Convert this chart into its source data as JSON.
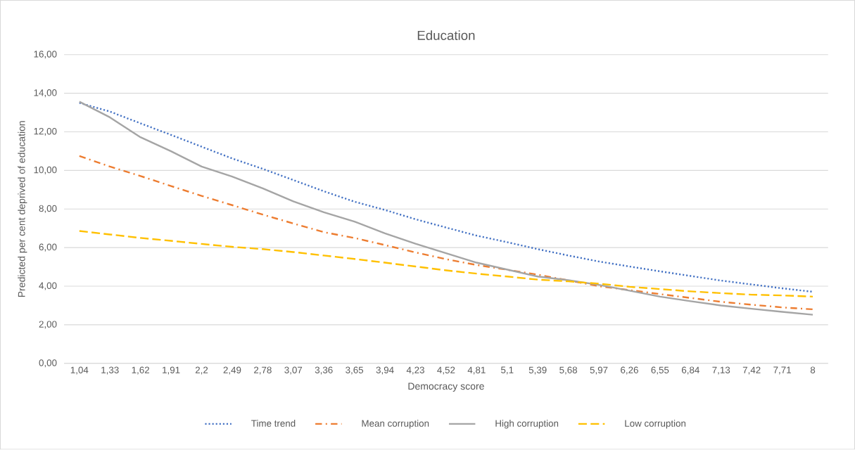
{
  "chart_data": {
    "type": "line",
    "title": "Education",
    "xlabel": "Democracy score",
    "ylabel": "Predicted per cent deprived of education",
    "categories": [
      "1,04",
      "1,33",
      "1,62",
      "1,91",
      "2,2",
      "2,49",
      "2,78",
      "3,07",
      "3,36",
      "3,65",
      "3,94",
      "4,23",
      "4,52",
      "4,81",
      "5,1",
      "5,39",
      "5,68",
      "5,97",
      "6,26",
      "6,55",
      "6,84",
      "7,13",
      "7,42",
      "7,71",
      "8"
    ],
    "ylim": [
      0,
      16
    ],
    "yticks": [
      {
        "value": 0,
        "label": "0,00"
      },
      {
        "value": 2,
        "label": "2,00"
      },
      {
        "value": 4,
        "label": "4,00"
      },
      {
        "value": 6,
        "label": "6,00"
      },
      {
        "value": 8,
        "label": "8,00"
      },
      {
        "value": 10,
        "label": "10,00"
      },
      {
        "value": 12,
        "label": "12,00"
      },
      {
        "value": 14,
        "label": "14,00"
      },
      {
        "value": 16,
        "label": "16,00"
      }
    ],
    "grid": "y",
    "legend": "bottom",
    "marker": "none",
    "series": [
      {
        "name": "Time trend",
        "color": "#4472c4",
        "line_style": "dotted",
        "values": [
          13.5,
          13.05,
          12.44,
          11.84,
          11.23,
          10.62,
          10.08,
          9.5,
          8.92,
          8.38,
          7.95,
          7.47,
          7.04,
          6.62,
          6.28,
          5.92,
          5.59,
          5.28,
          5.02,
          4.77,
          4.53,
          4.29,
          4.09,
          3.89,
          3.71
        ]
      },
      {
        "name": "Mean corruption",
        "color": "#ed7d31",
        "line_style": "dashdot",
        "values": [
          10.75,
          10.2,
          9.71,
          9.19,
          8.68,
          8.2,
          7.71,
          7.25,
          6.8,
          6.5,
          6.13,
          5.75,
          5.4,
          5.1,
          4.85,
          4.6,
          4.3,
          4.0,
          3.8,
          3.59,
          3.39,
          3.19,
          3.04,
          2.9,
          2.8
        ]
      },
      {
        "name": "High corruption",
        "color": "#a5a5a5",
        "line_style": "solid",
        "values": [
          13.56,
          12.75,
          11.72,
          10.99,
          10.2,
          9.68,
          9.07,
          8.4,
          7.83,
          7.35,
          6.74,
          6.2,
          5.71,
          5.22,
          4.86,
          4.5,
          4.31,
          4.07,
          3.77,
          3.46,
          3.22,
          3.0,
          2.83,
          2.67,
          2.52
        ]
      },
      {
        "name": "Low corruption",
        "color": "#ffc000",
        "line_style": "dashed",
        "values": [
          6.86,
          6.68,
          6.5,
          6.35,
          6.19,
          6.04,
          5.92,
          5.77,
          5.59,
          5.41,
          5.22,
          5.02,
          4.82,
          4.65,
          4.5,
          4.34,
          4.25,
          4.13,
          3.97,
          3.85,
          3.73,
          3.64,
          3.56,
          3.52,
          3.46
        ]
      }
    ]
  }
}
